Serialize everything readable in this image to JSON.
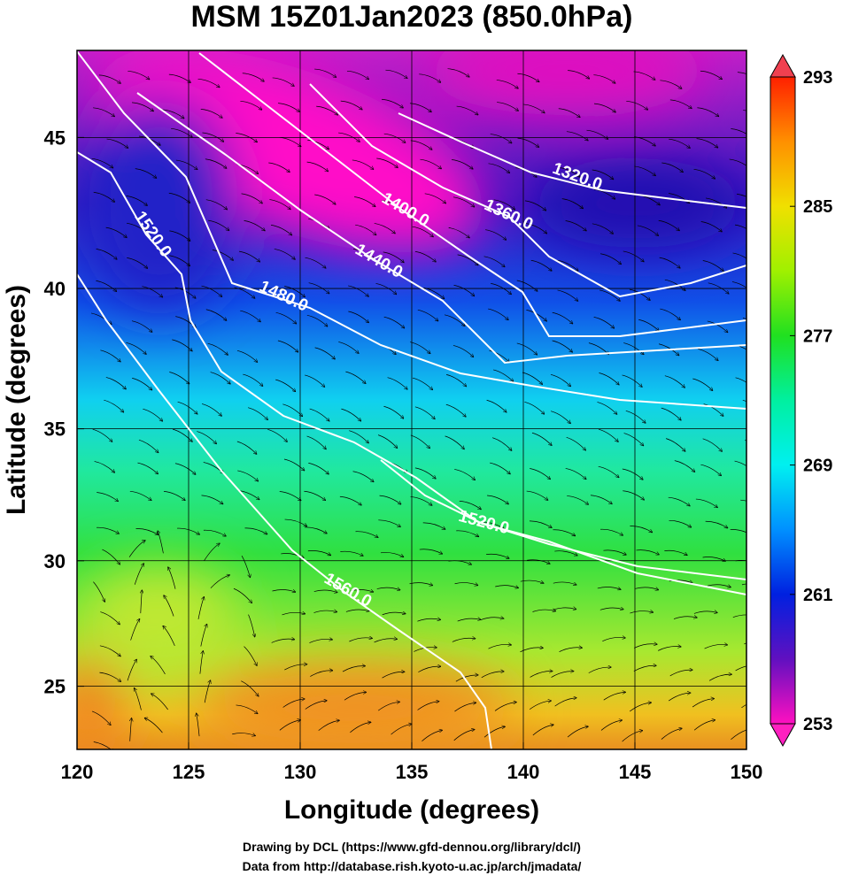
{
  "chart_data": {
    "type": "contour",
    "title": "MSM 15Z01Jan2023 (850.0hPa)",
    "x_label": "Longitude (degrees)",
    "y_label": "Latitude  (degrees)",
    "projection": "mercator",
    "xlim": [
      120,
      150
    ],
    "ylim": [
      22.4,
      47.7
    ],
    "xticks": [
      120,
      125,
      130,
      135,
      140,
      145,
      150
    ],
    "yticks": [
      25,
      30,
      35,
      40,
      45
    ],
    "grid": true,
    "contour_color": "#ffffff",
    "contours": [
      {
        "value": 1320,
        "label": "1320.0"
      },
      {
        "value": 1360,
        "label": "1360.0"
      },
      {
        "value": 1400,
        "label": "1400.0"
      },
      {
        "value": 1440,
        "label": "1440.0"
      },
      {
        "value": 1480,
        "label": "1480.0"
      },
      {
        "value": 1520,
        "label": "1520.0"
      },
      {
        "value": 1520,
        "label": "1520.0"
      },
      {
        "value": 1560,
        "label": "1560.0"
      }
    ],
    "colorbar": {
      "lim": [
        253,
        293
      ],
      "ticks": [
        253,
        261,
        269,
        277,
        285,
        293
      ]
    },
    "credits": [
      "Drawing by DCL (https://www.gfd-dennou.org/library/dcl/)",
      "Data from http://database.rish.kyoto-u.ac.jp/arch/jmadata/"
    ]
  }
}
